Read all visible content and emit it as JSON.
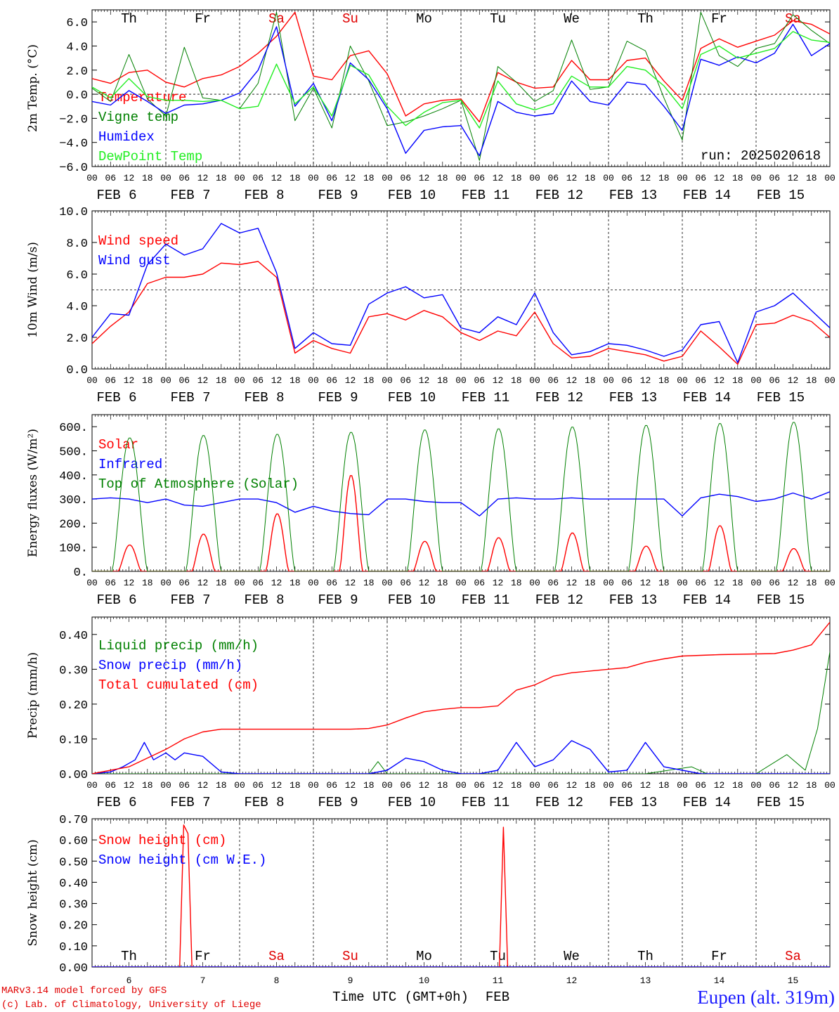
{
  "meta": {
    "run": "run: 2025020618",
    "model": "MARv3.14 model forced by GFS",
    "lab": "(c) Lab. of Climatology, University of Liege",
    "xlabel": "Time UTC (GMT+0h)",
    "xlabel_suffix": "FEB",
    "station": "Eupen (alt. 319m)"
  },
  "time_axis": {
    "dates": [
      "FEB  6",
      "FEB  7",
      "FEB  8",
      "FEB  9",
      "FEB 10",
      "FEB 11",
      "FEB 12",
      "FEB 13",
      "FEB 14",
      "FEB 15"
    ],
    "day_numbers": [
      "6",
      "7",
      "8",
      "9",
      "10",
      "11",
      "12",
      "13",
      "14",
      "15"
    ],
    "weekdays": [
      "Th",
      "Fr",
      "Sa",
      "Su",
      "Mo",
      "Tu",
      "We",
      "Th",
      "Fr",
      "Sa"
    ],
    "weekend_color": "#e00000",
    "weekday_color": "#000000",
    "hour_labels": [
      "00",
      "06",
      "12",
      "18"
    ]
  },
  "colors": {
    "red": "#ff0000",
    "green": "#008000",
    "blue": "#0000ff",
    "lightgreen": "#22ee22"
  },
  "chart_data": [
    {
      "type": "line",
      "ylabel": "2m Temp. (°C)",
      "ylim": [
        -6,
        7
      ],
      "yticks": [
        "6.0",
        "4.0",
        "2.0",
        "0.0",
        "−2.0",
        "−4.0",
        "−6.0"
      ],
      "ytick_values": [
        6,
        4,
        2,
        0,
        -2,
        -4,
        -6
      ],
      "refline": 0,
      "series": [
        {
          "name": "Temperature",
          "color": "#ff0000",
          "x": [
            0,
            6,
            12,
            18,
            24,
            30,
            36,
            42,
            48,
            54,
            60,
            66,
            72,
            78,
            84,
            90,
            96,
            102,
            108,
            114,
            120,
            126,
            132,
            138,
            144,
            150,
            156,
            162,
            168,
            174,
            180,
            186,
            192,
            198,
            204,
            210,
            216,
            222,
            228,
            234,
            240
          ],
          "y": [
            1.3,
            0.9,
            1.8,
            2.0,
            1.0,
            0.6,
            1.3,
            1.6,
            2.3,
            3.4,
            4.8,
            6.8,
            1.5,
            1.2,
            3.2,
            3.6,
            1.7,
            -1.8,
            -0.8,
            -0.5,
            -0.4,
            -2.3,
            1.8,
            1.0,
            0.5,
            0.6,
            2.8,
            1.2,
            1.2,
            2.8,
            3.0,
            1.1,
            -0.5,
            3.8,
            4.6,
            3.9,
            4.4,
            4.9,
            6.1,
            5.8,
            5.0
          ]
        },
        {
          "name": "Vigne temp",
          "color": "#008000",
          "x": [
            0,
            6,
            12,
            18,
            24,
            30,
            36,
            42,
            48,
            54,
            60,
            66,
            72,
            78,
            84,
            90,
            96,
            102,
            108,
            114,
            120,
            126,
            132,
            138,
            144,
            150,
            156,
            162,
            168,
            174,
            180,
            186,
            192,
            198,
            204,
            210,
            216,
            222,
            228,
            234,
            240
          ],
          "y": [
            0.5,
            -0.6,
            3.3,
            -0.4,
            -1.8,
            3.9,
            -0.3,
            -0.5,
            -1.2,
            0.9,
            6.8,
            -2.2,
            0.5,
            -2.8,
            4.0,
            1.1,
            -2.6,
            -2.3,
            -1.8,
            -1.2,
            -0.5,
            -5.5,
            2.3,
            1.0,
            -0.6,
            0.3,
            4.5,
            0.4,
            0.6,
            4.4,
            3.6,
            -0.3,
            -3.8,
            6.8,
            3.2,
            2.3,
            3.8,
            4.2,
            6.6,
            5.3,
            4.2
          ]
        },
        {
          "name": "Humidex",
          "color": "#0000ff",
          "x": [
            0,
            6,
            12,
            18,
            24,
            30,
            36,
            42,
            48,
            54,
            60,
            66,
            72,
            78,
            84,
            90,
            96,
            102,
            108,
            114,
            120,
            126,
            132,
            138,
            144,
            150,
            156,
            162,
            168,
            174,
            180,
            186,
            192,
            198,
            204,
            210,
            216,
            222,
            228,
            234,
            240
          ],
          "y": [
            -0.6,
            -0.9,
            0.3,
            -0.6,
            -1.6,
            -0.9,
            -0.8,
            -0.5,
            0.1,
            2.0,
            5.6,
            -1.0,
            0.9,
            -2.2,
            2.6,
            1.2,
            -1.2,
            -4.9,
            -3.0,
            -2.7,
            -2.6,
            -5.1,
            -0.6,
            -1.5,
            -1.8,
            -1.6,
            1.1,
            -0.6,
            -0.9,
            1.0,
            0.8,
            -1.0,
            -3.0,
            2.9,
            2.4,
            3.1,
            2.6,
            3.4,
            5.8,
            3.2,
            4.2
          ]
        },
        {
          "name": "DewPoint Temp",
          "color": "#22ee22",
          "x": [
            0,
            6,
            12,
            18,
            24,
            30,
            36,
            42,
            48,
            54,
            60,
            66,
            72,
            78,
            84,
            90,
            96,
            102,
            108,
            114,
            120,
            126,
            132,
            138,
            144,
            150,
            156,
            162,
            168,
            174,
            180,
            186,
            192,
            198,
            204,
            210,
            216,
            222,
            228,
            234,
            240
          ],
          "y": [
            0.6,
            -0.3,
            1.3,
            -0.2,
            -0.5,
            -0.5,
            -0.6,
            -0.5,
            -1.2,
            -1.0,
            2.5,
            -0.8,
            0.6,
            -1.8,
            2.4,
            1.6,
            -1.0,
            -2.6,
            -1.5,
            -0.7,
            -0.5,
            -2.8,
            1.1,
            -0.8,
            -1.3,
            -0.8,
            1.5,
            0.6,
            0.6,
            2.3,
            2.0,
            0.7,
            -1.2,
            3.3,
            4.0,
            3.0,
            3.4,
            3.8,
            5.2,
            4.5,
            4.3
          ]
        }
      ]
    },
    {
      "type": "line",
      "ylabel": "10m Wind (m/s)",
      "ylim": [
        0,
        10
      ],
      "yticks": [
        "10.0",
        "8.0",
        "6.0",
        "4.0",
        "2.0",
        "0.0"
      ],
      "ytick_values": [
        10,
        8,
        6,
        4,
        2,
        0
      ],
      "refline": 5,
      "series": [
        {
          "name": "Wind speed",
          "color": "#ff0000",
          "x": [
            0,
            6,
            12,
            18,
            24,
            30,
            36,
            42,
            48,
            54,
            60,
            66,
            72,
            78,
            84,
            90,
            96,
            102,
            108,
            114,
            120,
            126,
            132,
            138,
            144,
            150,
            156,
            162,
            168,
            174,
            180,
            186,
            192,
            198,
            204,
            210,
            216,
            222,
            228,
            234,
            240
          ],
          "y": [
            1.6,
            2.7,
            3.6,
            5.4,
            5.8,
            5.8,
            6.0,
            6.7,
            6.6,
            6.8,
            5.8,
            1.0,
            1.8,
            1.3,
            1.0,
            3.3,
            3.5,
            3.1,
            3.7,
            3.3,
            2.3,
            1.8,
            2.4,
            2.1,
            3.6,
            1.6,
            0.7,
            0.8,
            1.3,
            1.1,
            0.9,
            0.5,
            0.8,
            2.4,
            1.4,
            0.3,
            2.8,
            2.9,
            3.4,
            3.0,
            2.0
          ]
        },
        {
          "name": "Wind gust",
          "color": "#0000ff",
          "x": [
            0,
            6,
            12,
            18,
            24,
            30,
            36,
            42,
            48,
            54,
            60,
            66,
            72,
            78,
            84,
            90,
            96,
            102,
            108,
            114,
            120,
            126,
            132,
            138,
            144,
            150,
            156,
            162,
            168,
            174,
            180,
            186,
            192,
            198,
            204,
            210,
            216,
            222,
            228,
            234,
            240
          ],
          "y": [
            2.0,
            3.5,
            3.4,
            6.6,
            7.9,
            7.2,
            7.6,
            9.2,
            8.6,
            8.9,
            6.1,
            1.3,
            2.3,
            1.6,
            1.5,
            4.1,
            4.8,
            5.2,
            4.5,
            4.7,
            2.6,
            2.3,
            3.3,
            2.8,
            4.8,
            2.3,
            0.9,
            1.1,
            1.6,
            1.5,
            1.2,
            0.8,
            1.2,
            2.8,
            3.0,
            0.4,
            3.6,
            4.0,
            4.8,
            3.7,
            2.6
          ]
        }
      ]
    },
    {
      "type": "line",
      "ylabel": "Energy fluxes (W/m²)",
      "ylim": [
        0,
        650
      ],
      "yticks": [
        "600.",
        "500.",
        "400.",
        "300.",
        "200.",
        "100.",
        "0."
      ],
      "ytick_values": [
        600,
        500,
        400,
        300,
        200,
        100,
        0
      ],
      "refline": null,
      "series": [
        {
          "name": "Solar",
          "color": "#ff0000",
          "peaks": [
            110,
            155,
            240,
            400,
            125,
            140,
            160,
            105,
            190,
            95
          ]
        },
        {
          "name": "Infrared",
          "color": "#0000ff",
          "x": [
            0,
            6,
            12,
            18,
            24,
            30,
            36,
            42,
            48,
            54,
            60,
            66,
            72,
            78,
            84,
            90,
            96,
            102,
            108,
            114,
            120,
            126,
            132,
            138,
            144,
            150,
            156,
            162,
            168,
            174,
            180,
            186,
            192,
            198,
            204,
            210,
            216,
            222,
            228,
            234,
            240
          ],
          "y": [
            300,
            305,
            300,
            285,
            300,
            275,
            270,
            285,
            300,
            300,
            285,
            245,
            270,
            250,
            240,
            235,
            300,
            300,
            290,
            285,
            285,
            230,
            300,
            305,
            300,
            300,
            305,
            300,
            300,
            300,
            300,
            300,
            230,
            305,
            320,
            310,
            290,
            300,
            325,
            300,
            330
          ]
        },
        {
          "name": "Top of Atmosphere (Solar)",
          "color": "#008000",
          "peaks": [
            555,
            565,
            570,
            578,
            588,
            593,
            600,
            607,
            615,
            620
          ]
        }
      ]
    },
    {
      "type": "line",
      "ylabel": "Precip (mm/h)",
      "ylim": [
        0,
        0.45
      ],
      "yticks": [
        "0.40",
        "0.30",
        "0.20",
        "0.10",
        "0.00"
      ],
      "ytick_values": [
        0.4,
        0.3,
        0.2,
        0.1,
        0
      ],
      "refline": null,
      "series": [
        {
          "name": "Liquid precip (mm/h)",
          "color": "#008000",
          "x": [
            0,
            90,
            93,
            96,
            180,
            195,
            200,
            216,
            226,
            232,
            236,
            240
          ],
          "y": [
            0,
            0,
            0.035,
            0,
            0,
            0.02,
            0,
            0,
            0.055,
            0.01,
            0.13,
            0.35
          ]
        },
        {
          "name": "Snow precip (mm/h)",
          "color": "#0000ff",
          "x": [
            0,
            6,
            10,
            14,
            17,
            20,
            24,
            27,
            30,
            36,
            42,
            48,
            90,
            96,
            102,
            108,
            114,
            120,
            126,
            132,
            138,
            144,
            150,
            156,
            162,
            168,
            174,
            180,
            186,
            192,
            198,
            240
          ],
          "y": [
            0,
            0.005,
            0.02,
            0.04,
            0.09,
            0.04,
            0.06,
            0.04,
            0.06,
            0.05,
            0.005,
            0,
            0,
            0.01,
            0.045,
            0.035,
            0.01,
            0,
            0,
            0.01,
            0.09,
            0.02,
            0.04,
            0.095,
            0.07,
            0.005,
            0.01,
            0.09,
            0.02,
            0.01,
            0,
            0
          ]
        },
        {
          "name": "Total cumulated (cm)",
          "color": "#ff0000",
          "x": [
            0,
            12,
            24,
            30,
            36,
            42,
            48,
            60,
            72,
            84,
            90,
            96,
            102,
            108,
            114,
            120,
            126,
            132,
            138,
            144,
            150,
            156,
            162,
            168,
            174,
            180,
            186,
            192,
            198,
            204,
            210,
            216,
            222,
            228,
            234,
            240
          ],
          "y": [
            0,
            0.02,
            0.07,
            0.1,
            0.12,
            0.128,
            0.128,
            0.128,
            0.128,
            0.128,
            0.13,
            0.14,
            0.16,
            0.178,
            0.185,
            0.19,
            0.19,
            0.195,
            0.24,
            0.255,
            0.28,
            0.29,
            0.295,
            0.3,
            0.305,
            0.32,
            0.33,
            0.338,
            0.34,
            0.342,
            0.343,
            0.344,
            0.345,
            0.355,
            0.37,
            0.435
          ]
        }
      ]
    },
    {
      "type": "line",
      "ylabel": "Snow height (cm)",
      "ylim": [
        0,
        0.7
      ],
      "yticks": [
        "0.70",
        "0.60",
        "0.50",
        "0.40",
        "0.30",
        "0.20",
        "0.10",
        "0.00"
      ],
      "ytick_values": [
        0.7,
        0.6,
        0.5,
        0.4,
        0.3,
        0.2,
        0.1,
        0
      ],
      "refline": null,
      "series": [
        {
          "name": "Snow height (cm)",
          "color": "#ff0000",
          "x": [
            0,
            28.5,
            29.8,
            31.2,
            32.5,
            132.5,
            133.8,
            135.2,
            240
          ],
          "y": [
            0,
            0,
            0.67,
            0.63,
            0,
            0,
            0.66,
            0,
            0
          ]
        },
        {
          "name": "Snow height (cm W.E.)",
          "color": "#0000ff",
          "x": [
            0,
            240
          ],
          "y": [
            0,
            0
          ]
        }
      ]
    }
  ]
}
